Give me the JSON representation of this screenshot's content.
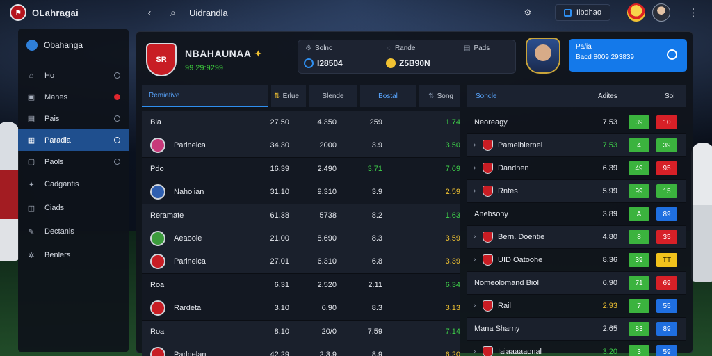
{
  "app": {
    "title": "OLahragai"
  },
  "topbar": {
    "search_label": "Uidrandla",
    "dash_label": "Iibdhao"
  },
  "sidebar": {
    "head": "Obahanga",
    "items": [
      {
        "label": "Ho",
        "icon": "home-icon",
        "glyph": "⌂"
      },
      {
        "label": "Manes",
        "icon": "matches-icon",
        "glyph": "▣",
        "alert": true
      },
      {
        "label": "Pais",
        "icon": "briefcase-icon",
        "glyph": "▤"
      },
      {
        "label": "Paradla",
        "icon": "chart-icon",
        "glyph": "▦",
        "active": true
      },
      {
        "label": "Paols",
        "icon": "document-icon",
        "glyph": "▢"
      },
      {
        "label": "Cadgantis",
        "icon": "puzzle-icon",
        "glyph": "✦"
      },
      {
        "label": "Ciads",
        "icon": "bag-icon",
        "glyph": "◫"
      },
      {
        "label": "Dectanis",
        "icon": "pen-icon",
        "glyph": "✎"
      },
      {
        "label": "Benlers",
        "icon": "settings-icon",
        "glyph": "✲"
      }
    ]
  },
  "team": {
    "crest_text": "SR",
    "name": "NBAHAUNAA",
    "sub": "99 29:9299"
  },
  "stats": {
    "s1_label": "Solnc",
    "s1_value": "I28504",
    "s2_label": "Rande",
    "s2_value": "Z5B90N",
    "s3_label": "Pads"
  },
  "promo": {
    "line1": "Pa/ia",
    "line2": "Bacd 8009 293839"
  },
  "left_table": {
    "tabs": [
      "Remiative",
      "Erlue",
      "Slende",
      "Bostal",
      "Song"
    ],
    "groups": [
      {
        "style": "alt",
        "rows": [
          {
            "name": "Bia",
            "c1": "27.50",
            "c2": "4.350",
            "c3": "259",
            "c4": "1.74",
            "c4c": "g"
          },
          {
            "name": "Parlnelca",
            "badge": "#c8397a",
            "c1": "34.30",
            "c2": "2000",
            "c3": "3.9",
            "c4": "3.50",
            "c4c": "g"
          }
        ]
      },
      {
        "style": "dark",
        "rows": [
          {
            "name": "Pdo",
            "c1": "16.39",
            "c2": "2.490",
            "c3": "3.71",
            "c3c": "g",
            "c4": "7.69",
            "c4c": "g"
          },
          {
            "name": "Naholian",
            "badge": "#2f5fb0",
            "c1": "31.10",
            "c2": "9.310",
            "c3": "3.9",
            "c4": "2.59",
            "c4c": "y"
          }
        ]
      },
      {
        "style": "alt",
        "rows": [
          {
            "name": "Reramate",
            "c1": "61.38",
            "c2": "5738",
            "c3": "8.2",
            "c4": "1.63",
            "c4c": "g"
          },
          {
            "name": "Aeaoole",
            "badge": "#3c9b3c",
            "c1": "21.00",
            "c2": "8.690",
            "c3": "8.3",
            "c4": "3.59",
            "c4c": "y"
          },
          {
            "name": "Parlnelca",
            "badge": "#c81d24",
            "c1": "27.01",
            "c2": "6.310",
            "c3": "6.8",
            "c4": "3.39",
            "c4c": "y"
          }
        ]
      },
      {
        "style": "dark",
        "rows": [
          {
            "name": "Roa",
            "c1": "6.31",
            "c2": "2.520",
            "c3": "2.11",
            "c4": "6.34",
            "c4c": "g"
          },
          {
            "name": "Rardeta",
            "badge": "#c81d24",
            "c1": "3.10",
            "c2": "6.90",
            "c3": "8.3",
            "c4": "3.13",
            "c4c": "y"
          }
        ]
      },
      {
        "style": "alt",
        "rows": [
          {
            "name": "Roa",
            "c1": "8.10",
            "c2": "20/0",
            "c3": "7.59",
            "c4": "7.14",
            "c4c": "g"
          },
          {
            "name": "Parlnelan",
            "badge": "#c81d24",
            "c1": "42.29",
            "c2": "2.3.9",
            "c3": "8.9",
            "c4": "6.20",
            "c4c": "y"
          }
        ]
      }
    ]
  },
  "right_table": {
    "header": {
      "col1": "Soncle",
      "col2": "Adites",
      "col3": "Soi"
    },
    "rows": [
      {
        "name": "Neoreagy",
        "val": "7.53",
        "p1": "39",
        "p1c": "green",
        "p2": "10",
        "p2c": "red"
      },
      {
        "name": "Pamelbiernel",
        "chev": true,
        "flag": true,
        "val": "7.53",
        "valc": "g",
        "p1": "4",
        "p1c": "green",
        "p2": "39",
        "p2c": "green"
      },
      {
        "name": "Dandnen",
        "chev": true,
        "flag": true,
        "val": "6.39",
        "p1": "49",
        "p1c": "green",
        "p2": "95",
        "p2c": "red"
      },
      {
        "name": "Rntes",
        "chev": true,
        "flag": true,
        "val": "5.99",
        "p1": "99",
        "p1c": "green",
        "p2": "15",
        "p2c": "green"
      },
      {
        "name": "Anebsony",
        "val": "3.89",
        "p1": "A",
        "p1c": "green",
        "p2": "89",
        "p2c": "blue"
      },
      {
        "name": "Bern. Doentie",
        "chev": true,
        "flag": true,
        "val": "4.80",
        "p1": "8",
        "p1c": "green",
        "p2": "35",
        "p2c": "red"
      },
      {
        "name": "UID Oatoohe",
        "chev": true,
        "flag": true,
        "val": "8.36",
        "p1": "39",
        "p1c": "green",
        "p2": "TT",
        "p2c": "yellow"
      },
      {
        "name": "Nomeolomand Biol",
        "val": "6.90",
        "p1": "71",
        "p1c": "green",
        "p2": "69",
        "p2c": "red"
      },
      {
        "name": "Rail",
        "chev": true,
        "flag": true,
        "val": "2.93",
        "valc": "y",
        "p1": "7",
        "p1c": "green",
        "p2": "55",
        "p2c": "blue"
      },
      {
        "name": "Mana Sharny",
        "val": "2.65",
        "p1": "83",
        "p1c": "green",
        "p2": "89",
        "p2c": "blue"
      },
      {
        "name": "Iaiaaaaaonal",
        "chev": true,
        "flag": true,
        "val": "3.20",
        "valc": "g",
        "p1": "3",
        "p1c": "green",
        "p2": "59",
        "p2c": "blue"
      }
    ]
  },
  "colors": {
    "accent": "#1479ea",
    "positive": "#3bb33e",
    "negative": "#d72027",
    "warning": "#f1c21c"
  }
}
